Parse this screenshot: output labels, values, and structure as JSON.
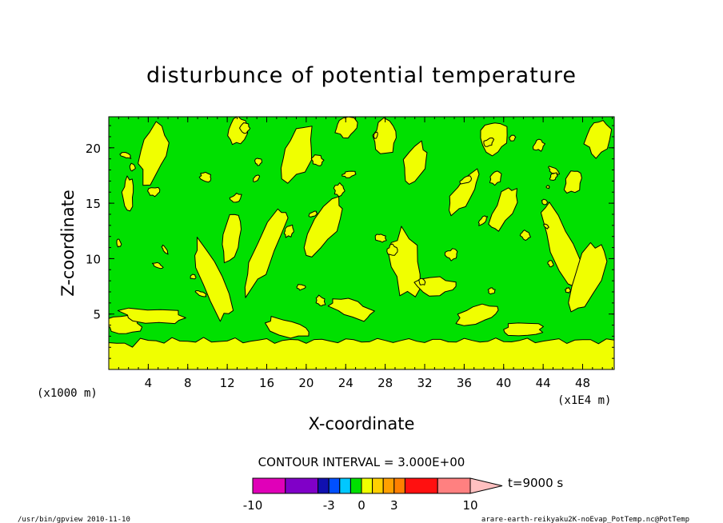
{
  "chart_data": {
    "type": "heatmap",
    "title": "disturbunce of potential temperature",
    "xlabel": "X-coordinate",
    "ylabel": "Z-coordinate",
    "x_unit_label": "(x1E4 m)",
    "y_unit_label": "(x1000 m)",
    "x_ticks": [
      4,
      8,
      12,
      16,
      20,
      24,
      28,
      32,
      36,
      40,
      44,
      48
    ],
    "y_ticks": [
      5,
      10,
      15,
      20
    ],
    "xlim": [
      0,
      51.2
    ],
    "ylim": [
      0,
      22.8
    ],
    "grid": false,
    "contour_interval_label": "CONTOUR INTERVAL = 3.000E+00",
    "time_label": "t=9000 s",
    "colorbar": {
      "tick_labels": [
        "-10",
        "-3",
        "0",
        "3",
        "10"
      ],
      "tick_values": [
        -10,
        -3,
        0,
        3,
        10
      ],
      "colors": [
        "#e000b8",
        "#8000c8",
        "#1010b0",
        "#0050ff",
        "#00c8ff",
        "#00e000",
        "#f0ff00",
        "#ffd000",
        "#ffa000",
        "#ff8000",
        "#ff1010",
        "#ff8080",
        "#ffc0c0"
      ]
    },
    "field_colors": {
      "negative_small": "#00e000",
      "positive_small": "#f0ff00",
      "contour": "#000000"
    },
    "surface_layer_top_z": 2.6
  },
  "footer": {
    "left": "/usr/bin/gpview   2010-11-10",
    "right": "arare-earth-reikyaku2K-noEvap_PotTemp.nc@PotTemp"
  }
}
